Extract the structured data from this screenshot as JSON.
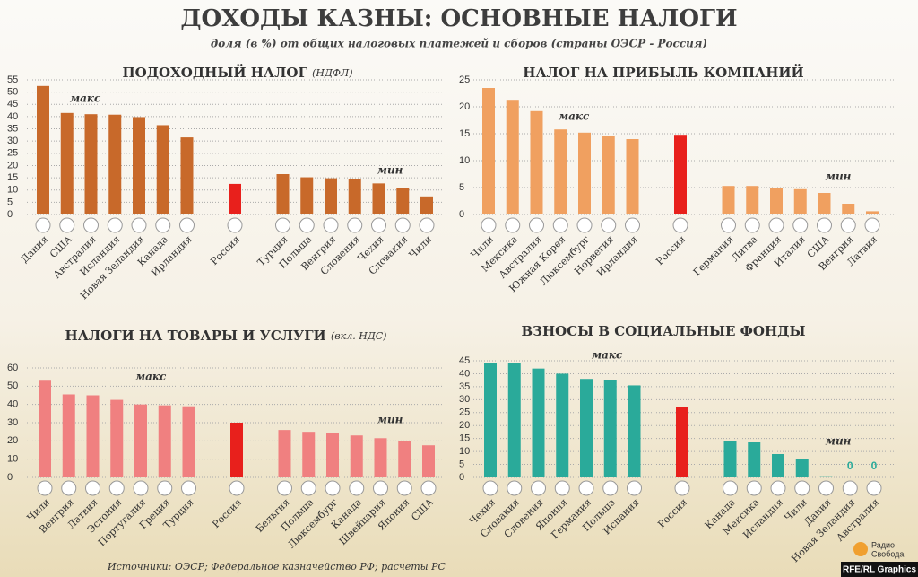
{
  "title": "ДОХОДЫ КАЗНЫ: ОСНОВНЫЕ НАЛОГИ",
  "subtitle": "доля (в %) от общих налоговых платежей и сборов (страны ОЭСР - Россия)",
  "source": "Источники: ОЭСР; Федеральное казначейство РФ; расчеты РС",
  "logo": [
    "Радио",
    "Свобода"
  ],
  "credit": "RFE/RL Graphics",
  "chart_data": [
    {
      "type": "bar",
      "title": "ПОДОХОДНЫЙ НАЛОГ",
      "title_note": "(НДФЛ)",
      "annotations": [
        "макс",
        "мин"
      ],
      "categories": [
        "Дания",
        "США",
        "Австралия",
        "Исландия",
        "Новая Зеландия",
        "Канада",
        "Ирландия",
        null,
        "Россия",
        null,
        "Турция",
        "Польша",
        "Венгрия",
        "Словения",
        "Чехия",
        "Словакия",
        "Чили"
      ],
      "values": [
        52.5,
        41.5,
        41,
        40.8,
        39.8,
        36.5,
        31.5,
        null,
        12.5,
        null,
        16.5,
        15.2,
        14.8,
        14.5,
        12.7,
        10.8,
        7.4
      ],
      "colors": [
        "#c8692a",
        "#c8692a",
        "#c8692a",
        "#c8692a",
        "#c8692a",
        "#c8692a",
        "#c8692a",
        null,
        "#e8201c",
        null,
        "#c8692a",
        "#c8692a",
        "#c8692a",
        "#c8692a",
        "#c8692a",
        "#c8692a",
        "#c8692a"
      ],
      "ylim": [
        0,
        55
      ],
      "yticks": [
        0,
        5,
        10,
        15,
        20,
        25,
        30,
        35,
        40,
        45,
        50,
        55
      ],
      "grid": true
    },
    {
      "type": "bar",
      "title": "НАЛОГ НА ПРИБЫЛЬ КОМПАНИЙ",
      "annotations": [
        "макс",
        "мин"
      ],
      "categories": [
        "Чили",
        "Мексика",
        "Австралия",
        "Южная Корея",
        "Люксембург",
        "Норвегия",
        "Ирландия",
        null,
        "Россия",
        null,
        "Германия",
        "Литва",
        "Франция",
        "Италия",
        "США",
        "Венгрия",
        "Латвия"
      ],
      "values": [
        23.5,
        21.3,
        19.2,
        15.8,
        15.2,
        14.5,
        14,
        null,
        14.8,
        null,
        5.3,
        5.3,
        5,
        4.7,
        4,
        2,
        0.6
      ],
      "colors": [
        "#f0a060",
        "#f0a060",
        "#f0a060",
        "#f0a060",
        "#f0a060",
        "#f0a060",
        "#f0a060",
        null,
        "#e8201c",
        null,
        "#f0a060",
        "#f0a060",
        "#f0a060",
        "#f0a060",
        "#f0a060",
        "#f0a060",
        "#f0a060"
      ],
      "ylim": [
        0,
        25
      ],
      "yticks": [
        0,
        5,
        10,
        15,
        20,
        25
      ],
      "grid": true
    },
    {
      "type": "bar",
      "title": "НАЛОГИ НА ТОВАРЫ И УСЛУГИ",
      "title_note": "(вкл. НДС)",
      "annotations": [
        "макс",
        "мин"
      ],
      "categories": [
        "Чили",
        "Венгрия",
        "Латвия",
        "Эстония",
        "Португалия",
        "Греция",
        "Турция",
        null,
        "Россия",
        null,
        "Бельгия",
        "Польша",
        "Люксембург",
        "Канада",
        "Швейцария",
        "Япония",
        "США"
      ],
      "values": [
        53,
        45.5,
        45,
        42.5,
        40,
        39.5,
        39,
        null,
        30,
        null,
        26,
        25,
        24.5,
        23,
        21.5,
        19.7,
        17.6
      ],
      "colors": [
        "#f08080",
        "#f08080",
        "#f08080",
        "#f08080",
        "#f08080",
        "#f08080",
        "#f08080",
        null,
        "#e8201c",
        null,
        "#f08080",
        "#f08080",
        "#f08080",
        "#f08080",
        "#f08080",
        "#f08080",
        "#f08080"
      ],
      "ylim": [
        0,
        60
      ],
      "yticks": [
        0,
        10,
        20,
        30,
        40,
        50,
        60
      ],
      "grid": true
    },
    {
      "type": "bar",
      "title": "ВЗНОСЫ В СОЦИАЛЬНЫЕ ФОНДЫ",
      "annotations": [
        "макс",
        "мин"
      ],
      "categories": [
        "Чехия",
        "Словакия",
        "Словения",
        "Япония",
        "Германия",
        "Польша",
        "Испания",
        null,
        "Россия",
        null,
        "Канада",
        "Мексика",
        "Исландия",
        "Чили",
        "Дания",
        "Новая Зеландия",
        "Австралия"
      ],
      "values": [
        44,
        44,
        42,
        40,
        38,
        37.5,
        35.5,
        null,
        27,
        null,
        14,
        13.5,
        9,
        7,
        0.1,
        0,
        0
      ],
      "colors": [
        "#2aaa9a",
        "#2aaa9a",
        "#2aaa9a",
        "#2aaa9a",
        "#2aaa9a",
        "#2aaa9a",
        "#2aaa9a",
        null,
        "#e8201c",
        null,
        "#2aaa9a",
        "#2aaa9a",
        "#2aaa9a",
        "#2aaa9a",
        "#2aaa9a",
        "#2aaa9a",
        "#2aaa9a"
      ],
      "ylim": [
        0,
        45
      ],
      "yticks": [
        0,
        5,
        10,
        15,
        20,
        25,
        30,
        35,
        40,
        45
      ],
      "grid": true
    }
  ]
}
